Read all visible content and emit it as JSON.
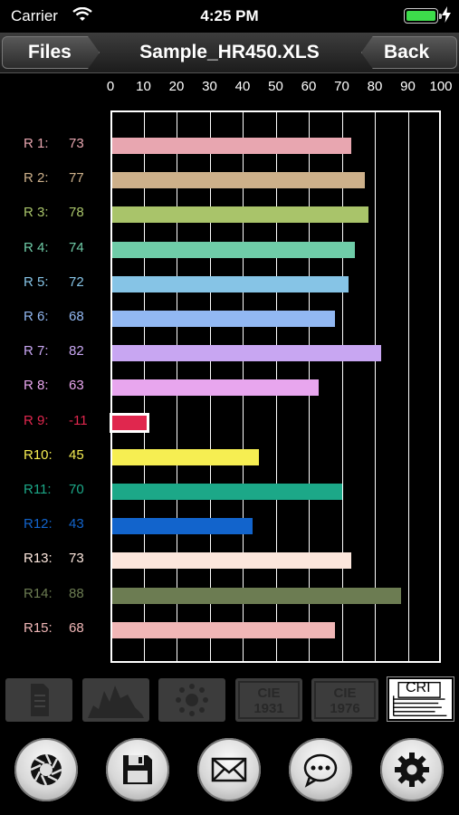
{
  "status_bar": {
    "carrier": "Carrier",
    "time": "4:25 PM",
    "battery_color": "#3ddc4b"
  },
  "nav": {
    "left_button": "Files",
    "title": "Sample_HR450.XLS",
    "right_button": "Back"
  },
  "chart_data": {
    "type": "bar",
    "orientation": "horizontal",
    "x_ticks": [
      "0",
      "10",
      "20",
      "30",
      "40",
      "50",
      "60",
      "70",
      "80",
      "90",
      "100"
    ],
    "xlim": [
      0,
      100
    ],
    "grid": true,
    "categories": [
      "R 1:",
      "R 2:",
      "R 3:",
      "R 4:",
      "R 5:",
      "R 6:",
      "R 7:",
      "R 8:",
      "R 9:",
      "R10:",
      "R11:",
      "R12:",
      "R13:",
      "R14:",
      "R15:"
    ],
    "values": [
      73,
      77,
      78,
      74,
      72,
      68,
      82,
      63,
      -11,
      45,
      70,
      43,
      73,
      88,
      68
    ],
    "value_labels": [
      "73",
      "77",
      "78",
      "74",
      "72",
      "68",
      "82",
      "63",
      "-11",
      "45",
      "70",
      "43",
      "73",
      "88",
      "68"
    ],
    "colors": [
      "#e8a6b0",
      "#cdb08a",
      "#a9c46a",
      "#6fcca8",
      "#86c4e6",
      "#92b8f2",
      "#c8a6f2",
      "#e8a6ee",
      "#e0274e",
      "#f6ee52",
      "#1ca888",
      "#1264cc",
      "#fce6dc",
      "#6c7c52",
      "#f0b6b6"
    ]
  },
  "toolbar": {
    "tools": [
      {
        "icon": "document-icon"
      },
      {
        "icon": "spectrum-icon"
      },
      {
        "icon": "color-dots-icon"
      },
      {
        "icon": "cie1931-icon",
        "label": "CIE\n1931"
      },
      {
        "icon": "cie1976-icon",
        "label": "CIE\n1976"
      },
      {
        "icon": "cri-icon",
        "label": "CRI"
      }
    ],
    "actions": [
      {
        "icon": "camera-shutter-icon"
      },
      {
        "icon": "save-icon"
      },
      {
        "icon": "mail-icon"
      },
      {
        "icon": "message-icon"
      },
      {
        "icon": "settings-gear-icon"
      }
    ]
  }
}
